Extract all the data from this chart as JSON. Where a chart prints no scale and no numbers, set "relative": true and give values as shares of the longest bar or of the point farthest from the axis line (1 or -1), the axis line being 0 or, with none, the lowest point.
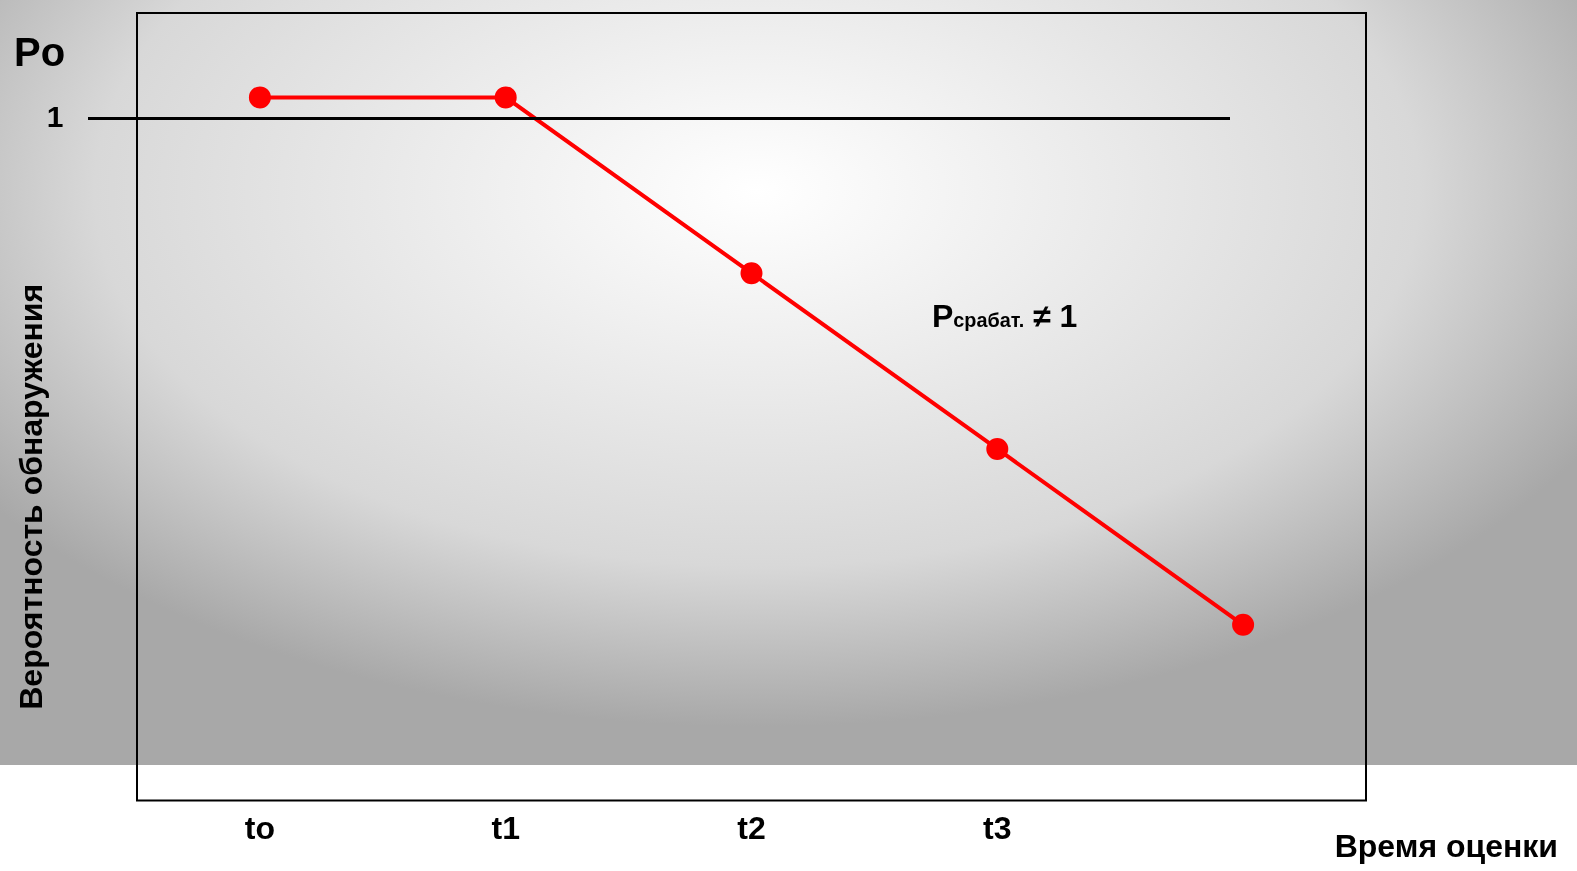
{
  "chart_data": {
    "type": "line",
    "relative": true,
    "xlabel": "Время оценки",
    "ylabel": "Вероятность обнаружения",
    "categories": [
      "to",
      "t1",
      "t2",
      "t3",
      null
    ],
    "series": [
      {
        "color": "#ff0000",
        "values": [
          1,
          1,
          0.75,
          0.5,
          0.25
        ]
      }
    ],
    "ref_lines": [
      {
        "axis": "y",
        "value": 0.97,
        "label": "1",
        "color": "#000000"
      }
    ],
    "annotations": [
      "Po",
      "P$_{срабат.}$ ≠ 1"
    ],
    "marker": "circle",
    "legend": false,
    "grid": false
  }
}
